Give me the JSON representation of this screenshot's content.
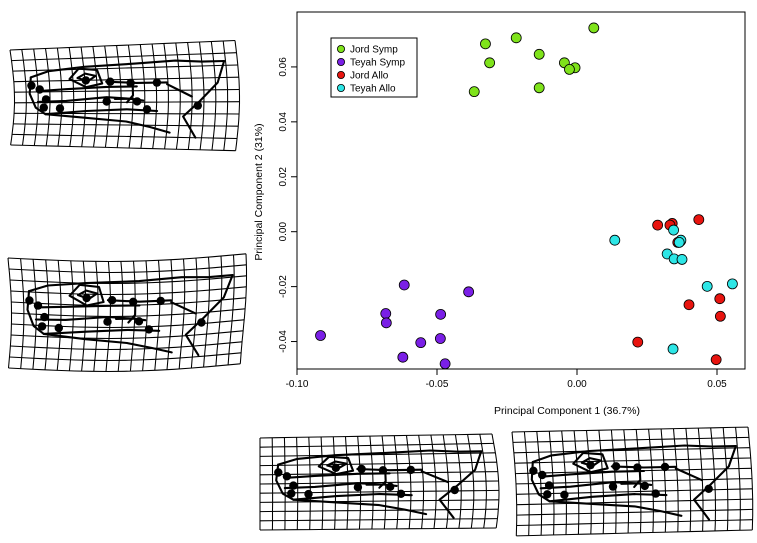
{
  "chart_data": {
    "type": "scatter",
    "xlabel": "Principal Component 1 (36.7%)",
    "ylabel": "Principal Component 2 (31%)",
    "xlim": [
      -0.1,
      0.06
    ],
    "ylim": [
      -0.05,
      0.08
    ],
    "x_ticks": [
      -0.1,
      -0.05,
      0.0,
      0.05
    ],
    "x_tick_labels": [
      "-0.10",
      "-0.05",
      "0.00",
      "0.05"
    ],
    "y_ticks": [
      -0.04,
      -0.02,
      0.0,
      0.02,
      0.04,
      0.06
    ],
    "y_tick_labels": [
      "-0.04",
      "-0.02",
      "0.00",
      "0.02",
      "0.04",
      "0.06"
    ],
    "legend_position": "top-left",
    "series": [
      {
        "name": "Jord Symp",
        "color": "#7fe31b",
        "points": [
          [
            0.006,
            0.0742
          ],
          [
            -0.0217,
            0.0706
          ],
          [
            -0.0327,
            0.0684
          ],
          [
            -0.0135,
            0.0646
          ],
          [
            -0.0312,
            0.0615
          ],
          [
            -0.0045,
            0.0615
          ],
          [
            -0.0007,
            0.0597
          ],
          [
            -0.0027,
            0.0591
          ],
          [
            -0.0135,
            0.0524
          ],
          [
            -0.0367,
            0.051
          ]
        ]
      },
      {
        "name": "Teyah Symp",
        "color": "#7a1fe6",
        "points": [
          [
            -0.0617,
            -0.0194
          ],
          [
            -0.0387,
            -0.0219
          ],
          [
            -0.0683,
            -0.0298
          ],
          [
            -0.0487,
            -0.0301
          ],
          [
            -0.0681,
            -0.0332
          ],
          [
            -0.0916,
            -0.0378
          ],
          [
            -0.0488,
            -0.0389
          ],
          [
            -0.0558,
            -0.0404
          ],
          [
            -0.0622,
            -0.0457
          ],
          [
            -0.0471,
            -0.0481
          ]
        ]
      },
      {
        "name": "Jord Allo",
        "color": "#e8140f",
        "points": [
          [
            0.0435,
            0.0044
          ],
          [
            0.034,
            0.003
          ],
          [
            0.0288,
            0.0024
          ],
          [
            0.0332,
            0.0024
          ],
          [
            0.036,
            -0.0039
          ],
          [
            0.037,
            -0.0034
          ],
          [
            0.051,
            -0.0244
          ],
          [
            0.04,
            -0.0266
          ],
          [
            0.0512,
            -0.0308
          ],
          [
            0.0217,
            -0.0402
          ],
          [
            0.0497,
            -0.0466
          ]
        ]
      },
      {
        "name": "Teyah Allo",
        "color": "#2de6e6",
        "points": [
          [
            0.0345,
            0.0006
          ],
          [
            0.0135,
            -0.0031
          ],
          [
            0.0371,
            -0.0031
          ],
          [
            0.0365,
            -0.0039
          ],
          [
            0.0322,
            -0.0081
          ],
          [
            0.0347,
            -0.0099
          ],
          [
            0.0375,
            -0.0101
          ],
          [
            0.0555,
            -0.019
          ],
          [
            0.0465,
            -0.0199
          ],
          [
            0.0343,
            -0.0427
          ]
        ]
      }
    ]
  }
}
